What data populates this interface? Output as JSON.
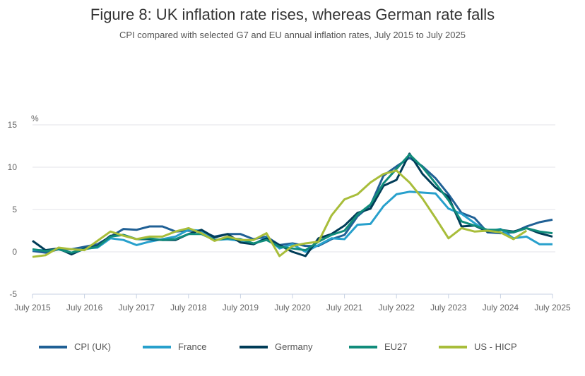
{
  "chart_data": {
    "type": "line",
    "title": "Figure 8: UK inflation rate rises, whereas German rate falls",
    "subtitle": "CPI compared with selected G7 and EU annual inflation rates, July 2015 to July 2025",
    "ylabel": "%",
    "ylim": [
      -5,
      15
    ],
    "yticks": [
      "15",
      "10",
      "5",
      "0",
      "-5"
    ],
    "ytick_values": [
      15,
      10,
      5,
      0,
      -5
    ],
    "xticks": [
      "July 2015",
      "July 2016",
      "July 2017",
      "July 2018",
      "July 2019",
      "July 2020",
      "July 2021",
      "July 2022",
      "July 2023",
      "July 2024",
      "July 2025"
    ],
    "x_note": "quarterly points from July 2015 to July 2025",
    "grid": true,
    "legend_position": "bottom",
    "series": [
      {
        "name": "CPI (UK)",
        "color": "#206095",
        "values": [
          0.1,
          -0.1,
          0.3,
          0.3,
          0.6,
          0.9,
          1.8,
          2.7,
          2.6,
          3.0,
          3.0,
          2.4,
          2.5,
          2.4,
          1.8,
          2.1,
          2.1,
          1.5,
          1.8,
          0.8,
          1.0,
          0.7,
          0.7,
          1.5,
          2.0,
          4.2,
          5.5,
          9.0,
          10.1,
          11.1,
          10.1,
          8.7,
          6.8,
          4.6,
          4.0,
          2.3,
          2.2,
          2.3,
          3.0,
          3.5,
          3.8
        ]
      },
      {
        "name": "France",
        "color": "#27a0cc",
        "values": [
          0.2,
          0.2,
          0.3,
          -0.1,
          0.4,
          0.5,
          1.6,
          1.4,
          0.8,
          1.2,
          1.5,
          1.8,
          2.6,
          2.5,
          1.4,
          1.5,
          1.3,
          0.9,
          1.7,
          0.4,
          0.9,
          0.0,
          0.8,
          1.6,
          1.5,
          3.2,
          3.3,
          5.4,
          6.8,
          7.1,
          7.0,
          6.9,
          5.1,
          4.5,
          3.4,
          2.4,
          2.7,
          1.6,
          1.8,
          0.9,
          0.9
        ]
      },
      {
        "name": "Germany",
        "color": "#003c57",
        "values": [
          1.3,
          0.2,
          0.4,
          -0.3,
          0.4,
          0.7,
          1.9,
          2.0,
          1.5,
          1.5,
          1.4,
          1.4,
          2.1,
          2.6,
          1.7,
          2.1,
          1.1,
          0.9,
          1.6,
          0.8,
          0.0,
          -0.5,
          1.6,
          2.1,
          3.1,
          4.6,
          5.1,
          7.8,
          8.5,
          11.6,
          9.2,
          7.6,
          6.5,
          3.0,
          3.1,
          2.4,
          2.6,
          2.4,
          2.8,
          2.2,
          1.8
        ]
      },
      {
        "name": "EU27",
        "color": "#118c7b",
        "values": [
          0.3,
          0.1,
          0.3,
          -0.1,
          0.3,
          0.6,
          1.8,
          2.0,
          1.5,
          1.6,
          1.4,
          1.5,
          2.1,
          2.1,
          1.4,
          1.6,
          1.5,
          1.0,
          1.4,
          0.6,
          0.4,
          0.2,
          1.2,
          2.0,
          2.5,
          4.4,
          5.6,
          8.1,
          9.8,
          11.5,
          10.0,
          8.1,
          6.1,
          3.6,
          3.1,
          2.6,
          2.6,
          2.3,
          2.8,
          2.4,
          2.2
        ]
      },
      {
        "name": "US - HICP",
        "color": "#a8bd3a",
        "values": [
          -0.6,
          -0.4,
          0.5,
          0.3,
          0.2,
          1.3,
          2.4,
          1.9,
          1.5,
          1.8,
          1.8,
          2.4,
          2.8,
          2.2,
          1.3,
          1.8,
          1.4,
          1.4,
          2.2,
          -0.5,
          0.7,
          1.0,
          1.2,
          4.3,
          6.2,
          6.8,
          8.2,
          9.2,
          9.6,
          8.2,
          6.3,
          4.0,
          1.6,
          2.8,
          2.4,
          2.5,
          2.3,
          1.5,
          2.5,
          null,
          null
        ]
      }
    ]
  }
}
